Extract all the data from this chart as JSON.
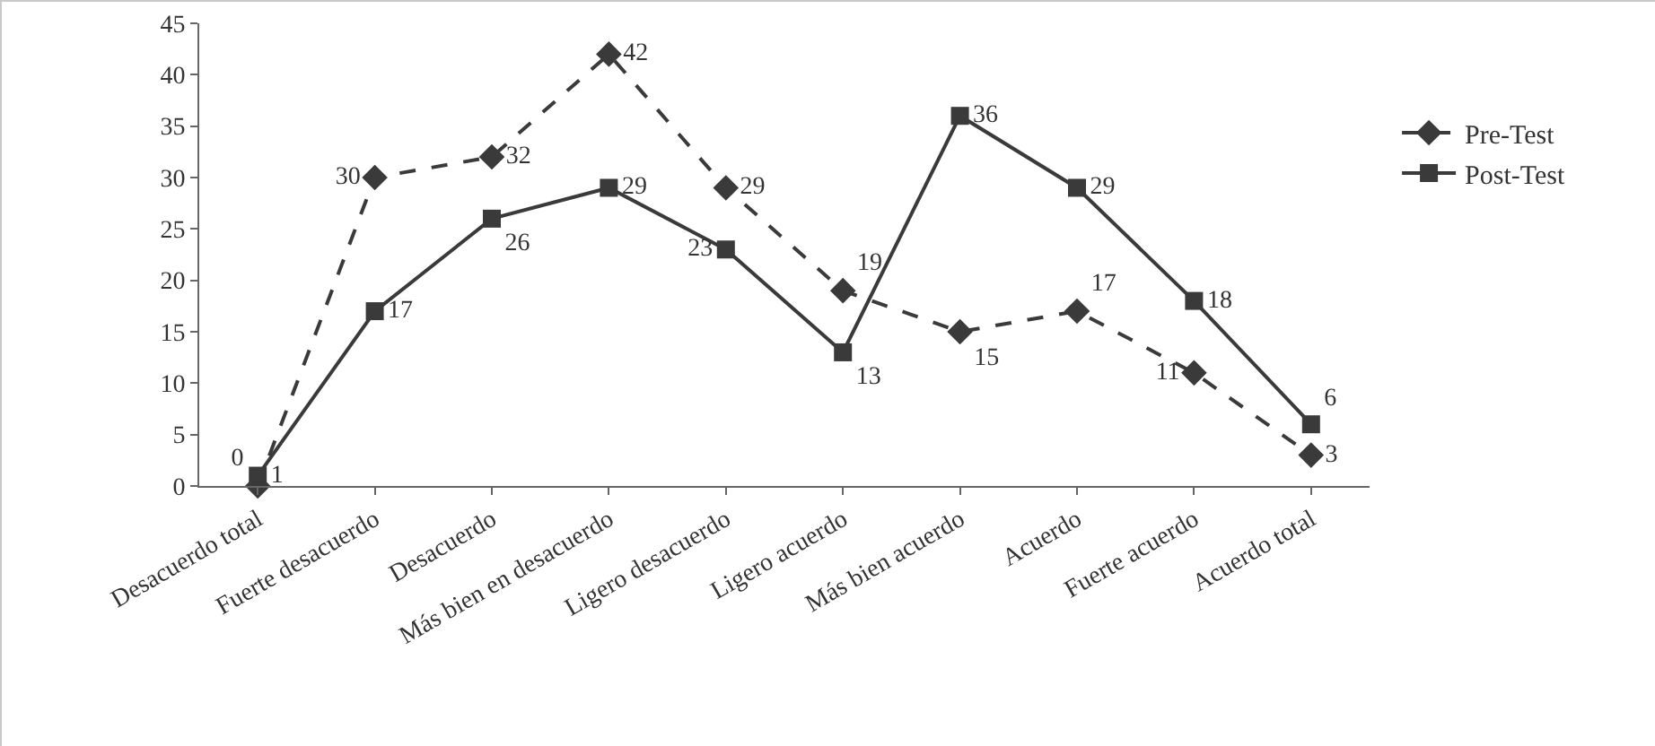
{
  "chart_data": {
    "type": "line",
    "categories": [
      "Desacuerdo total",
      "Fuerte desacuerdo",
      "Desacuerdo",
      "Más bien en desacuerdo",
      "Ligero desacuerdo",
      "Ligero acuerdo",
      "Más bien acuerdo",
      "Acuerdo",
      "Fuerte acuerdo",
      "Acuerdo total"
    ],
    "series": [
      {
        "name": "Pre-Test",
        "color": "#3a3a3a",
        "marker": "diamond",
        "line_style": "dashed",
        "values": [
          0,
          30,
          32,
          42,
          29,
          19,
          15,
          17,
          11,
          3
        ]
      },
      {
        "name": "Post-Test",
        "color": "#3a3a3a",
        "marker": "square",
        "line_style": "solid",
        "values": [
          1,
          17,
          26,
          29,
          23,
          13,
          36,
          29,
          18,
          6
        ]
      }
    ],
    "ylim": [
      0,
      45
    ],
    "yticks": [
      0,
      5,
      10,
      15,
      20,
      25,
      30,
      35,
      40,
      45
    ],
    "grid": false,
    "legend": "right",
    "data_labels": true
  }
}
